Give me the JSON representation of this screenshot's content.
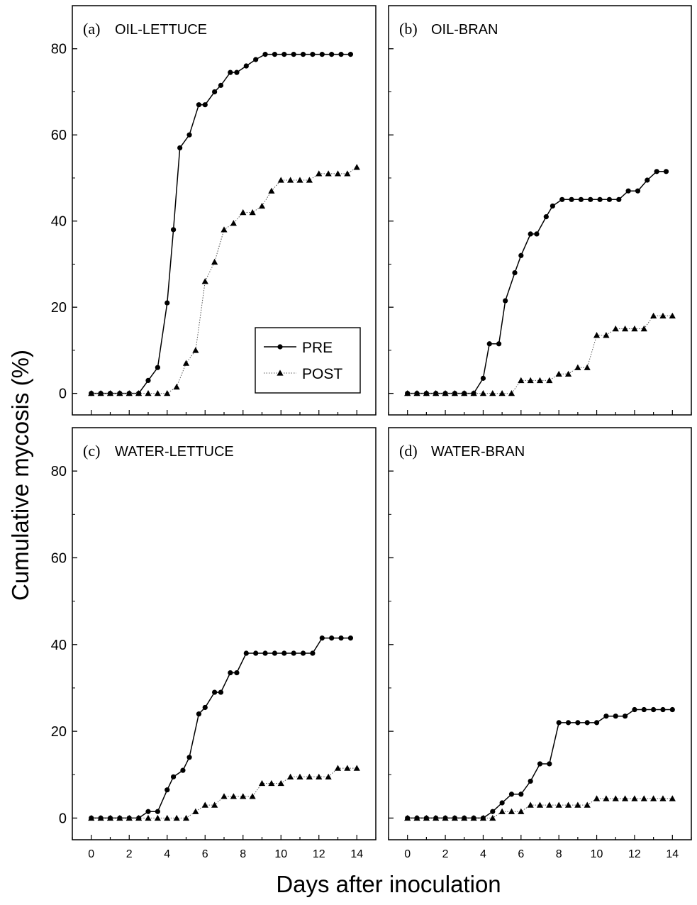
{
  "figure": {
    "ylabel": "Cumulative mycosis (%)",
    "xlabel": "Days after inoculation"
  },
  "legend": {
    "pre_label": "PRE",
    "post_label": "POST"
  },
  "chart_data": [
    {
      "type": "line",
      "panel_label": "(a)",
      "title": "OIL-LETTUCE",
      "ylim": [
        -5,
        90
      ],
      "xlim": [
        -1,
        15
      ],
      "yticks": [
        0,
        20,
        40,
        60,
        80
      ],
      "xticks": [
        0,
        2,
        4,
        6,
        8,
        10,
        12,
        14
      ],
      "show_xtick_labels": false,
      "legend": "lower-right",
      "series": [
        {
          "name": "PRE",
          "x": [
            0,
            0.5,
            1,
            1.5,
            2,
            2.5,
            3,
            3.5,
            4,
            4.33,
            4.67,
            5.17,
            5.67,
            6,
            6.5,
            6.83,
            7.33,
            7.67,
            8.17,
            8.67,
            9.17,
            9.67,
            10.17,
            10.67,
            11.17,
            11.67,
            12.17,
            12.67,
            13.17,
            13.67
          ],
          "y": [
            0,
            0,
            0,
            0,
            0,
            0,
            3,
            6,
            21,
            38,
            57,
            60,
            67,
            67,
            70,
            71.5,
            74.5,
            74.5,
            76,
            77.5,
            78.7,
            78.7,
            78.7,
            78.7,
            78.7,
            78.7,
            78.7,
            78.7,
            78.7,
            78.7
          ]
        },
        {
          "name": "POST",
          "x": [
            0,
            0.5,
            1,
            1.5,
            2,
            2.5,
            3,
            3.5,
            4,
            4.5,
            5,
            5.5,
            6,
            6.5,
            7,
            7.5,
            8,
            8.5,
            9,
            9.5,
            10,
            10.5,
            11,
            11.5,
            12,
            12.5,
            13,
            13.5,
            14
          ],
          "y": [
            0,
            0,
            0,
            0,
            0,
            0,
            0,
            0,
            0,
            1.5,
            7,
            10,
            26,
            30.5,
            38,
            39.5,
            42,
            42,
            43.5,
            47,
            49.5,
            49.5,
            49.5,
            49.5,
            51,
            51,
            51,
            51,
            52.5
          ]
        }
      ]
    },
    {
      "type": "line",
      "panel_label": "(b)",
      "title": "OIL-BRAN",
      "ylim": [
        -5,
        90
      ],
      "xlim": [
        -1,
        15
      ],
      "yticks": [
        0,
        20,
        40,
        60,
        80
      ],
      "xticks": [
        0,
        2,
        4,
        6,
        8,
        10,
        12,
        14
      ],
      "show_xtick_labels": false,
      "series": [
        {
          "name": "PRE",
          "x": [
            0,
            0.5,
            1,
            1.5,
            2,
            2.5,
            3,
            3.5,
            4,
            4.33,
            4.83,
            5.17,
            5.67,
            6,
            6.5,
            6.83,
            7.33,
            7.67,
            8.17,
            8.67,
            9.17,
            9.67,
            10.17,
            10.67,
            11.17,
            11.67,
            12.17,
            12.67,
            13.17,
            13.67
          ],
          "y": [
            0,
            0,
            0,
            0,
            0,
            0,
            0,
            0,
            3.5,
            11.5,
            11.5,
            21.5,
            28,
            32,
            37,
            37,
            41,
            43.5,
            45,
            45,
            45,
            45,
            45,
            45,
            45,
            47,
            47,
            49.5,
            51.5,
            51.5
          ]
        },
        {
          "name": "POST",
          "x": [
            0,
            0.5,
            1,
            1.5,
            2,
            2.5,
            3,
            3.5,
            4,
            4.5,
            5,
            5.5,
            6,
            6.5,
            7,
            7.5,
            8,
            8.5,
            9,
            9.5,
            10,
            10.5,
            11,
            11.5,
            12,
            12.5,
            13,
            13.5,
            14
          ],
          "y": [
            0,
            0,
            0,
            0,
            0,
            0,
            0,
            0,
            0,
            0,
            0,
            0,
            3,
            3,
            3,
            3,
            4.5,
            4.5,
            6,
            6,
            13.5,
            13.5,
            15,
            15,
            15,
            15,
            18,
            18,
            18
          ]
        }
      ]
    },
    {
      "type": "line",
      "panel_label": "(c)",
      "title": "WATER-LETTUCE",
      "ylim": [
        -5,
        90
      ],
      "xlim": [
        -1,
        15
      ],
      "yticks": [
        0,
        20,
        40,
        60,
        80
      ],
      "xticks": [
        0,
        2,
        4,
        6,
        8,
        10,
        12,
        14
      ],
      "show_xtick_labels": true,
      "series": [
        {
          "name": "PRE",
          "x": [
            0,
            0.5,
            1,
            1.5,
            2,
            2.5,
            3,
            3.5,
            4,
            4.33,
            4.83,
            5.17,
            5.67,
            6,
            6.5,
            6.83,
            7.33,
            7.67,
            8.17,
            8.67,
            9.17,
            9.67,
            10.17,
            10.67,
            11.17,
            11.67,
            12.17,
            12.67,
            13.17,
            13.67
          ],
          "y": [
            0,
            0,
            0,
            0,
            0,
            0,
            1.5,
            1.5,
            6.5,
            9.5,
            11,
            14,
            24,
            25.5,
            29,
            29,
            33.5,
            33.5,
            38,
            38,
            38,
            38,
            38,
            38,
            38,
            38,
            41.5,
            41.5,
            41.5,
            41.5
          ]
        },
        {
          "name": "POST",
          "x": [
            0,
            0.5,
            1,
            1.5,
            2,
            2.5,
            3,
            3.5,
            4,
            4.5,
            5,
            5.5,
            6,
            6.5,
            7,
            7.5,
            8,
            8.5,
            9,
            9.5,
            10,
            10.5,
            11,
            11.5,
            12,
            12.5,
            13,
            13.5,
            14
          ],
          "y": [
            0,
            0,
            0,
            0,
            0,
            0,
            0,
            0,
            0,
            0,
            0,
            1.5,
            3,
            3,
            5,
            5,
            5,
            5,
            8,
            8,
            8,
            9.5,
            9.5,
            9.5,
            9.5,
            9.5,
            11.5,
            11.5,
            11.5
          ]
        }
      ]
    },
    {
      "type": "line",
      "panel_label": "(d)",
      "title": "WATER-BRAN",
      "ylim": [
        -5,
        90
      ],
      "xlim": [
        -1,
        15
      ],
      "yticks": [
        0,
        20,
        40,
        60,
        80
      ],
      "xticks": [
        0,
        2,
        4,
        6,
        8,
        10,
        12,
        14
      ],
      "show_xtick_labels": true,
      "series": [
        {
          "name": "PRE",
          "x": [
            0,
            0.5,
            1,
            1.5,
            2,
            2.5,
            3,
            3.5,
            4,
            4.5,
            5,
            5.5,
            6,
            6.5,
            7,
            7.5,
            8,
            8.5,
            9,
            9.5,
            10,
            10.5,
            11,
            11.5,
            12,
            12.5,
            13,
            13.5,
            14
          ],
          "y": [
            0,
            0,
            0,
            0,
            0,
            0,
            0,
            0,
            0,
            1.5,
            3.5,
            5.5,
            5.5,
            8.5,
            12.5,
            12.5,
            22,
            22,
            22,
            22,
            22,
            23.5,
            23.5,
            23.5,
            25,
            25,
            25,
            25,
            25
          ]
        },
        {
          "name": "POST",
          "x": [
            0,
            0.5,
            1,
            1.5,
            2,
            2.5,
            3,
            3.5,
            4,
            4.5,
            5,
            5.5,
            6,
            6.5,
            7,
            7.5,
            8,
            8.5,
            9,
            9.5,
            10,
            10.5,
            11,
            11.5,
            12,
            12.5,
            13,
            13.5,
            14
          ],
          "y": [
            0,
            0,
            0,
            0,
            0,
            0,
            0,
            0,
            0,
            0,
            1.5,
            1.5,
            1.5,
            3,
            3,
            3,
            3,
            3,
            3,
            3,
            4.5,
            4.5,
            4.5,
            4.5,
            4.5,
            4.5,
            4.5,
            4.5,
            4.5
          ]
        }
      ]
    }
  ]
}
